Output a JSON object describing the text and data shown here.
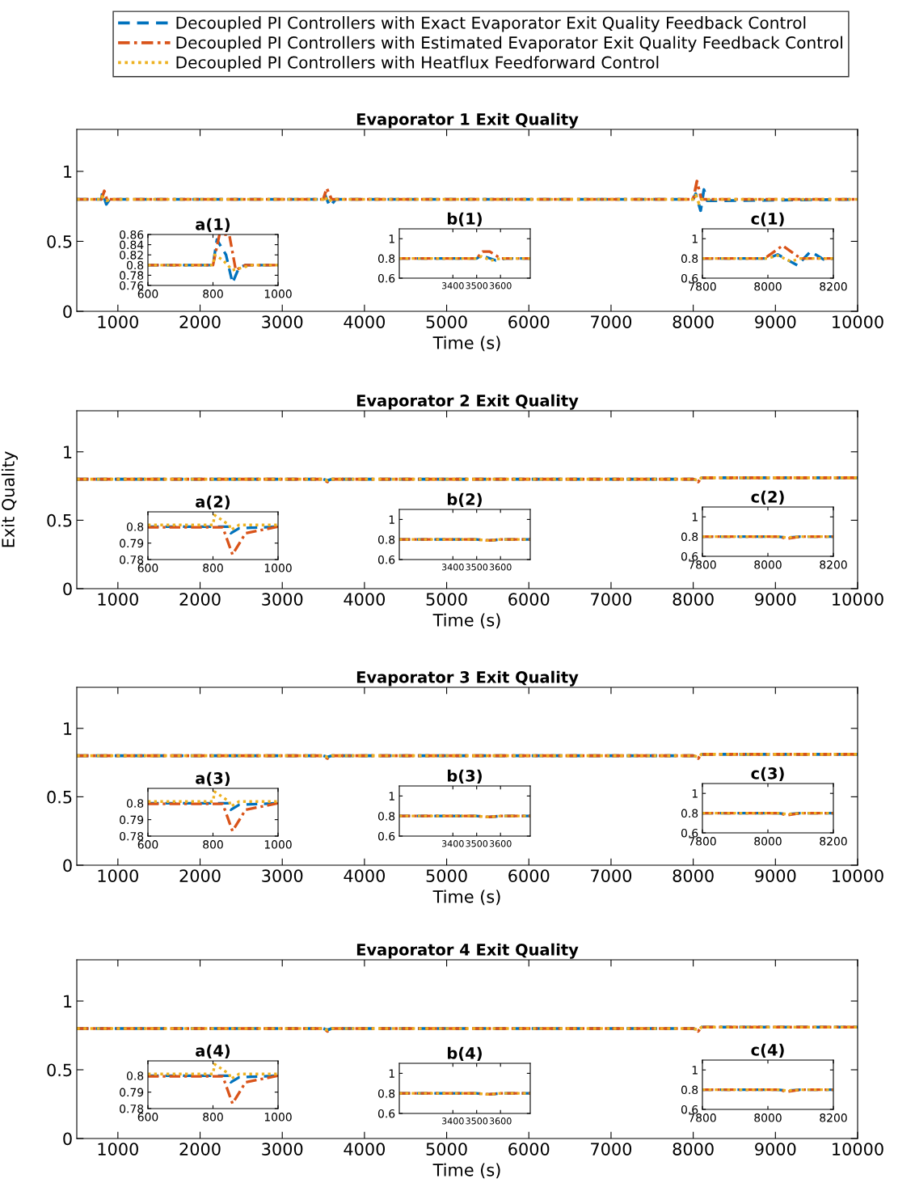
{
  "chart_data": [
    {
      "type": "line",
      "title": "Evaporator 1 Exit Quality",
      "xlabel": "Time (s)",
      "xlim": [
        500,
        10000
      ],
      "ylim": [
        0,
        1.3
      ],
      "xticks": [
        1000,
        2000,
        3000,
        4000,
        5000,
        6000,
        7000,
        8000,
        9000,
        10000
      ],
      "yticks": [
        0,
        0.5,
        1
      ],
      "legend": "top",
      "series": [
        {
          "name": "Decoupled PI Controllers with Exact Evaporator Exit Quality Feedback Control",
          "color": "#0072bd",
          "line_style": "dashed",
          "x": [
            500,
            800,
            812,
            860,
            900,
            3500,
            3520,
            3580,
            3650,
            8000,
            8030,
            8090,
            8130,
            8170,
            10000
          ],
          "values": [
            0.8,
            0.8,
            0.85,
            0.765,
            0.8,
            0.8,
            0.83,
            0.75,
            0.8,
            0.8,
            0.84,
            0.72,
            0.87,
            0.79,
            0.8
          ]
        },
        {
          "name": "Decoupled PI Controllers with Estimated Evaporator Exit Quality Feedback Control",
          "color": "#d95319",
          "line_style": "dashdot",
          "x": [
            500,
            800,
            835,
            870,
            900,
            3500,
            3540,
            3600,
            8000,
            8045,
            8100,
            10000
          ],
          "values": [
            0.8,
            0.8,
            0.86,
            0.79,
            0.8,
            0.8,
            0.88,
            0.8,
            0.8,
            0.93,
            0.8,
            0.8
          ]
        },
        {
          "name": "Decoupled PI Controllers with Heatflux Feedforward Control",
          "color": "#edb120",
          "line_style": "dotted",
          "x": [
            500,
            800,
            805,
            860,
            920,
            3500,
            3520,
            3560,
            3600,
            8000,
            8030,
            8070,
            8100,
            10000
          ],
          "values": [
            0.8,
            0.8,
            0.82,
            0.79,
            0.8,
            0.8,
            0.82,
            0.78,
            0.8,
            0.8,
            0.83,
            0.77,
            0.8,
            0.8
          ]
        }
      ]
    },
    {
      "type": "line",
      "title": "a(1)",
      "xlim": [
        600,
        1000
      ],
      "ylim": [
        0.76,
        0.86
      ],
      "xticks": [
        600,
        800,
        1000
      ],
      "yticks": [
        0.76,
        0.78,
        0.8,
        0.82,
        0.84,
        0.86
      ],
      "series": [
        {
          "color": "#0072bd",
          "line_style": "dashed",
          "x": [
            600,
            800,
            812,
            840,
            860,
            880,
            900,
            1000
          ],
          "values": [
            0.8,
            0.8,
            0.85,
            0.82,
            0.765,
            0.795,
            0.8,
            0.8
          ]
        },
        {
          "color": "#d95319",
          "line_style": "dashdot",
          "x": [
            600,
            800,
            820,
            850,
            870,
            900,
            1000
          ],
          "values": [
            0.8,
            0.8,
            0.86,
            0.86,
            0.79,
            0.8,
            0.8
          ]
        },
        {
          "color": "#edb120",
          "line_style": "dotted",
          "x": [
            600,
            800,
            805,
            830,
            860,
            920,
            1000
          ],
          "values": [
            0.8,
            0.8,
            0.82,
            0.81,
            0.79,
            0.8,
            0.8
          ]
        }
      ]
    },
    {
      "type": "line",
      "title": "b(1)",
      "xlim": [
        3175,
        3725
      ],
      "ylim": [
        0.6,
        1.1
      ],
      "xticks": [
        3400,
        3500,
        3600
      ],
      "yticks": [
        0.6,
        0.8,
        1
      ],
      "series": [
        {
          "color": "#0072bd",
          "line_style": "dashed",
          "x": [
            3175,
            3500,
            3520,
            3580,
            3620,
            3725
          ],
          "values": [
            0.8,
            0.8,
            0.83,
            0.78,
            0.8,
            0.8
          ]
        },
        {
          "color": "#d95319",
          "line_style": "dashdot",
          "x": [
            3175,
            3500,
            3525,
            3555,
            3600,
            3725
          ],
          "values": [
            0.8,
            0.8,
            0.87,
            0.87,
            0.8,
            0.8
          ]
        },
        {
          "color": "#edb120",
          "line_style": "dotted",
          "x": [
            3175,
            3500,
            3520,
            3560,
            3600,
            3725
          ],
          "values": [
            0.8,
            0.8,
            0.82,
            0.78,
            0.8,
            0.8
          ]
        }
      ]
    },
    {
      "type": "line",
      "title": "c(1)",
      "xlim": [
        7800,
        8200
      ],
      "ylim": [
        0.6,
        1.1
      ],
      "xticks": [
        7800,
        8000,
        8200
      ],
      "yticks": [
        0.6,
        0.8,
        1
      ],
      "series": [
        {
          "color": "#0072bd",
          "line_style": "dashed",
          "x": [
            7800,
            8000,
            8030,
            8090,
            8130,
            8170,
            8200
          ],
          "values": [
            0.8,
            0.8,
            0.84,
            0.73,
            0.87,
            0.79,
            0.8
          ]
        },
        {
          "color": "#d95319",
          "line_style": "dashdot",
          "x": [
            7800,
            7990,
            8045,
            8100,
            8200
          ],
          "values": [
            0.8,
            0.8,
            0.93,
            0.8,
            0.8
          ]
        },
        {
          "color": "#edb120",
          "line_style": "dotted",
          "x": [
            7800,
            8000,
            8030,
            8070,
            8100,
            8200
          ],
          "values": [
            0.8,
            0.8,
            0.83,
            0.77,
            0.8,
            0.8
          ]
        }
      ]
    },
    {
      "type": "line",
      "title": "Evaporator 2 Exit Quality",
      "xlabel": "Time (s)",
      "ylabel": "Exit Quality",
      "xlim": [
        500,
        10000
      ],
      "ylim": [
        0,
        1.3
      ],
      "xticks": [
        1000,
        2000,
        3000,
        4000,
        5000,
        6000,
        7000,
        8000,
        9000,
        10000
      ],
      "yticks": [
        0,
        0.5,
        1
      ],
      "series": [
        {
          "color": "#0072bd",
          "line_style": "dashed",
          "x": [
            500,
            3500,
            3550,
            3600,
            8000,
            8060,
            8100,
            10000
          ],
          "values": [
            0.8,
            0.8,
            0.79,
            0.8,
            0.8,
            0.79,
            0.81,
            0.81
          ]
        },
        {
          "color": "#d95319",
          "line_style": "dashdot",
          "x": [
            500,
            3500,
            3550,
            3600,
            8000,
            8060,
            8100,
            10000
          ],
          "values": [
            0.8,
            0.8,
            0.78,
            0.8,
            0.8,
            0.78,
            0.81,
            0.81
          ]
        },
        {
          "color": "#edb120",
          "line_style": "dotted",
          "x": [
            500,
            3500,
            3550,
            3600,
            8000,
            8060,
            8100,
            10000
          ],
          "values": [
            0.8,
            0.8,
            0.79,
            0.8,
            0.8,
            0.79,
            0.81,
            0.81
          ]
        }
      ]
    },
    {
      "type": "line",
      "title": "a(2)",
      "xlim": [
        600,
        1000
      ],
      "ylim": [
        0.78,
        0.809
      ],
      "xticks": [
        600,
        800,
        1000
      ],
      "yticks": [
        0.78,
        0.79,
        0.8
      ],
      "series": [
        {
          "color": "#0072bd",
          "line_style": "dashed",
          "x": [
            600,
            850,
            855,
            880,
            1000
          ],
          "values": [
            0.8,
            0.8,
            0.796,
            0.799,
            0.8
          ]
        },
        {
          "color": "#d95319",
          "line_style": "dashdot",
          "x": [
            600,
            830,
            860,
            900,
            1000
          ],
          "values": [
            0.7996,
            0.7996,
            0.783,
            0.796,
            0.8
          ]
        },
        {
          "color": "#edb120",
          "line_style": "dotted",
          "x": [
            600,
            800,
            805,
            850,
            855,
            880,
            1000
          ],
          "values": [
            0.801,
            0.801,
            0.807,
            0.801,
            0.798,
            0.801,
            0.801
          ]
        }
      ]
    },
    {
      "type": "line",
      "title": "b(2)",
      "xlim": [
        3175,
        3725
      ],
      "ylim": [
        0.6,
        1.1
      ],
      "xticks": [
        3400,
        3500,
        3600
      ],
      "yticks": [
        0.6,
        0.8,
        1
      ],
      "series": [
        {
          "color": "#0072bd",
          "line_style": "dashed",
          "x": [
            3175,
            3500,
            3550,
            3600,
            3725
          ],
          "values": [
            0.8,
            0.8,
            0.79,
            0.8,
            0.8
          ]
        },
        {
          "color": "#d95319",
          "line_style": "dashdot",
          "x": [
            3175,
            3500,
            3550,
            3600,
            3725
          ],
          "values": [
            0.8,
            0.8,
            0.79,
            0.8,
            0.8
          ]
        },
        {
          "color": "#edb120",
          "line_style": "dotted",
          "x": [
            3175,
            3500,
            3550,
            3600,
            3725
          ],
          "values": [
            0.8,
            0.8,
            0.79,
            0.8,
            0.8
          ]
        }
      ]
    },
    {
      "type": "line",
      "title": "c(2)",
      "xlim": [
        7800,
        8200
      ],
      "ylim": [
        0.6,
        1.1
      ],
      "xticks": [
        7800,
        8000,
        8200
      ],
      "yticks": [
        0.6,
        0.8,
        1
      ],
      "series": [
        {
          "color": "#0072bd",
          "line_style": "dashed",
          "x": [
            7800,
            8030,
            8060,
            8100,
            8200
          ],
          "values": [
            0.8,
            0.8,
            0.79,
            0.8,
            0.8
          ]
        },
        {
          "color": "#d95319",
          "line_style": "dashdot",
          "x": [
            7800,
            8030,
            8060,
            8100,
            8200
          ],
          "values": [
            0.8,
            0.8,
            0.78,
            0.8,
            0.8
          ]
        },
        {
          "color": "#edb120",
          "line_style": "dotted",
          "x": [
            7800,
            8030,
            8060,
            8100,
            8200
          ],
          "values": [
            0.8,
            0.8,
            0.79,
            0.8,
            0.8
          ]
        }
      ]
    },
    {
      "type": "line",
      "title": "Evaporator 3 Exit Quality",
      "xlabel": "Time (s)",
      "xlim": [
        500,
        10000
      ],
      "ylim": [
        0,
        1.3
      ],
      "xticks": [
        1000,
        2000,
        3000,
        4000,
        5000,
        6000,
        7000,
        8000,
        9000,
        10000
      ],
      "yticks": [
        0,
        0.5,
        1
      ],
      "series": [
        {
          "color": "#0072bd",
          "line_style": "dashed",
          "x": [
            500,
            3500,
            3550,
            3600,
            8000,
            8060,
            8100,
            10000
          ],
          "values": [
            0.8,
            0.8,
            0.79,
            0.8,
            0.8,
            0.79,
            0.81,
            0.81
          ]
        },
        {
          "color": "#d95319",
          "line_style": "dashdot",
          "x": [
            500,
            3500,
            3550,
            3600,
            8000,
            8060,
            8100,
            10000
          ],
          "values": [
            0.8,
            0.8,
            0.78,
            0.8,
            0.8,
            0.78,
            0.81,
            0.81
          ]
        },
        {
          "color": "#edb120",
          "line_style": "dotted",
          "x": [
            500,
            3500,
            3550,
            3600,
            8000,
            8060,
            8100,
            10000
          ],
          "values": [
            0.8,
            0.8,
            0.79,
            0.8,
            0.8,
            0.79,
            0.81,
            0.81
          ]
        }
      ]
    },
    {
      "type": "line",
      "title": "a(3)",
      "xlim": [
        600,
        1000
      ],
      "ylim": [
        0.78,
        0.809
      ],
      "xticks": [
        600,
        800,
        1000
      ],
      "yticks": [
        0.78,
        0.79,
        0.8
      ],
      "series": [
        {
          "color": "#0072bd",
          "line_style": "dashed",
          "x": [
            600,
            850,
            855,
            880,
            1000
          ],
          "values": [
            0.8,
            0.8,
            0.796,
            0.799,
            0.8
          ]
        },
        {
          "color": "#d95319",
          "line_style": "dashdot",
          "x": [
            600,
            830,
            860,
            900,
            1000
          ],
          "values": [
            0.7996,
            0.7996,
            0.783,
            0.796,
            0.8
          ]
        },
        {
          "color": "#edb120",
          "line_style": "dotted",
          "x": [
            600,
            800,
            805,
            850,
            855,
            880,
            1000
          ],
          "values": [
            0.801,
            0.801,
            0.807,
            0.801,
            0.798,
            0.801,
            0.801
          ]
        }
      ]
    },
    {
      "type": "line",
      "title": "b(3)",
      "xlim": [
        3175,
        3725
      ],
      "ylim": [
        0.6,
        1.1
      ],
      "xticks": [
        3400,
        3500,
        3600
      ],
      "yticks": [
        0.6,
        0.8,
        1
      ],
      "series": [
        {
          "color": "#0072bd",
          "line_style": "dashed",
          "x": [
            3175,
            3500,
            3550,
            3600,
            3725
          ],
          "values": [
            0.8,
            0.8,
            0.79,
            0.8,
            0.8
          ]
        },
        {
          "color": "#d95319",
          "line_style": "dashdot",
          "x": [
            3175,
            3500,
            3550,
            3600,
            3725
          ],
          "values": [
            0.8,
            0.8,
            0.79,
            0.8,
            0.8
          ]
        },
        {
          "color": "#edb120",
          "line_style": "dotted",
          "x": [
            3175,
            3500,
            3550,
            3600,
            3725
          ],
          "values": [
            0.8,
            0.8,
            0.79,
            0.8,
            0.8
          ]
        }
      ]
    },
    {
      "type": "line",
      "title": "c(3)",
      "xlim": [
        7800,
        8200
      ],
      "ylim": [
        0.6,
        1.1
      ],
      "xticks": [
        7800,
        8000,
        8200
      ],
      "yticks": [
        0.6,
        0.8,
        1
      ],
      "series": [
        {
          "color": "#0072bd",
          "line_style": "dashed",
          "x": [
            7800,
            8030,
            8060,
            8100,
            8200
          ],
          "values": [
            0.8,
            0.8,
            0.79,
            0.8,
            0.8
          ]
        },
        {
          "color": "#d95319",
          "line_style": "dashdot",
          "x": [
            7800,
            8030,
            8060,
            8100,
            8200
          ],
          "values": [
            0.8,
            0.8,
            0.78,
            0.8,
            0.8
          ]
        },
        {
          "color": "#edb120",
          "line_style": "dotted",
          "x": [
            7800,
            8030,
            8060,
            8100,
            8200
          ],
          "values": [
            0.8,
            0.8,
            0.79,
            0.8,
            0.8
          ]
        }
      ]
    },
    {
      "type": "line",
      "title": "Evaporator 4 Exit Quality",
      "xlabel": "Time (s)",
      "xlim": [
        500,
        10000
      ],
      "ylim": [
        0,
        1.3
      ],
      "xticks": [
        1000,
        2000,
        3000,
        4000,
        5000,
        6000,
        7000,
        8000,
        9000,
        10000
      ],
      "yticks": [
        0,
        0.5,
        1
      ],
      "series": [
        {
          "color": "#0072bd",
          "line_style": "dashed",
          "x": [
            500,
            3500,
            3550,
            3600,
            8000,
            8060,
            8100,
            10000
          ],
          "values": [
            0.8,
            0.8,
            0.79,
            0.8,
            0.8,
            0.79,
            0.81,
            0.81
          ]
        },
        {
          "color": "#d95319",
          "line_style": "dashdot",
          "x": [
            500,
            3500,
            3550,
            3600,
            8000,
            8060,
            8100,
            10000
          ],
          "values": [
            0.8,
            0.8,
            0.78,
            0.8,
            0.8,
            0.78,
            0.81,
            0.81
          ]
        },
        {
          "color": "#edb120",
          "line_style": "dotted",
          "x": [
            500,
            3500,
            3550,
            3600,
            8000,
            8060,
            8100,
            10000
          ],
          "values": [
            0.8,
            0.8,
            0.79,
            0.8,
            0.8,
            0.79,
            0.81,
            0.81
          ]
        }
      ]
    },
    {
      "type": "line",
      "title": "a(4)",
      "xlim": [
        600,
        1000
      ],
      "ylim": [
        0.78,
        0.809
      ],
      "xticks": [
        600,
        800,
        1000
      ],
      "yticks": [
        0.78,
        0.79,
        0.8
      ],
      "series": [
        {
          "color": "#0072bd",
          "line_style": "dashed",
          "x": [
            600,
            850,
            855,
            880,
            1000
          ],
          "values": [
            0.8,
            0.8,
            0.796,
            0.799,
            0.8
          ]
        },
        {
          "color": "#d95319",
          "line_style": "dashdot",
          "x": [
            600,
            830,
            860,
            900,
            1000
          ],
          "values": [
            0.7996,
            0.7996,
            0.783,
            0.796,
            0.8
          ]
        },
        {
          "color": "#edb120",
          "line_style": "dotted",
          "x": [
            600,
            800,
            805,
            850,
            855,
            880,
            1000
          ],
          "values": [
            0.801,
            0.801,
            0.807,
            0.801,
            0.798,
            0.801,
            0.801
          ]
        }
      ]
    },
    {
      "type": "line",
      "title": "b(4)",
      "xlim": [
        3175,
        3725
      ],
      "ylim": [
        0.6,
        1.1
      ],
      "xticks": [
        3400,
        3500,
        3600
      ],
      "yticks": [
        0.6,
        0.8,
        1
      ],
      "series": [
        {
          "color": "#0072bd",
          "line_style": "dashed",
          "x": [
            3175,
            3500,
            3550,
            3600,
            3725
          ],
          "values": [
            0.8,
            0.8,
            0.79,
            0.8,
            0.8
          ]
        },
        {
          "color": "#d95319",
          "line_style": "dashdot",
          "x": [
            3175,
            3500,
            3550,
            3600,
            3725
          ],
          "values": [
            0.8,
            0.8,
            0.79,
            0.8,
            0.8
          ]
        },
        {
          "color": "#edb120",
          "line_style": "dotted",
          "x": [
            3175,
            3500,
            3550,
            3600,
            3725
          ],
          "values": [
            0.8,
            0.8,
            0.79,
            0.8,
            0.8
          ]
        }
      ]
    },
    {
      "type": "line",
      "title": "c(4)",
      "xlim": [
        7800,
        8200
      ],
      "ylim": [
        0.6,
        1.1
      ],
      "xticks": [
        7800,
        8000,
        8200
      ],
      "yticks": [
        0.6,
        0.8,
        1
      ],
      "series": [
        {
          "color": "#0072bd",
          "line_style": "dashed",
          "x": [
            7800,
            8030,
            8060,
            8100,
            8200
          ],
          "values": [
            0.8,
            0.8,
            0.79,
            0.8,
            0.8
          ]
        },
        {
          "color": "#d95319",
          "line_style": "dashdot",
          "x": [
            7800,
            8030,
            8060,
            8100,
            8200
          ],
          "values": [
            0.8,
            0.8,
            0.78,
            0.8,
            0.8
          ]
        },
        {
          "color": "#edb120",
          "line_style": "dotted",
          "x": [
            7800,
            8030,
            8060,
            8100,
            8200
          ],
          "values": [
            0.8,
            0.8,
            0.79,
            0.8,
            0.8
          ]
        }
      ]
    }
  ]
}
